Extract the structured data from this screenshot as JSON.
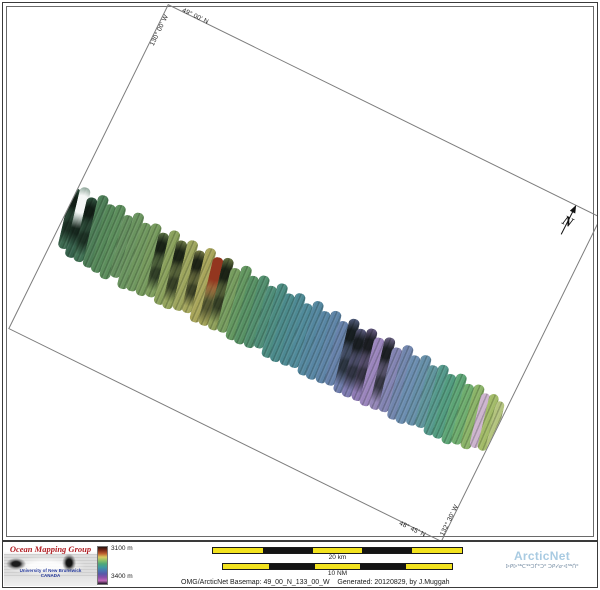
{
  "map": {
    "graticule_labels": {
      "top_lat": "49° 00' N",
      "top_lon": "130° 00' W",
      "bottom_lat": "48° 45' N",
      "bottom_lon": "132° 30' W"
    },
    "north_arrow_label": "N",
    "swath": {
      "strips": [
        [
          0,
          204,
          62,
          11,
          "#3c6950",
          1
        ],
        [
          9,
          199,
          72,
          11,
          "#35614b",
          3
        ],
        [
          19,
          205,
          66,
          11,
          "#417255",
          1
        ],
        [
          29,
          198,
          74,
          11,
          "#4d7e57",
          0
        ],
        [
          39,
          203,
          70,
          11,
          "#558859",
          0
        ],
        [
          49,
          199,
          76,
          11,
          "#5c8e5c",
          0
        ],
        [
          59,
          205,
          64,
          11,
          "#648f5e",
          0
        ],
        [
          69,
          198,
          78,
          11,
          "#6a945f",
          0
        ],
        [
          79,
          204,
          70,
          11,
          "#6f975e",
          0
        ],
        [
          89,
          200,
          74,
          11,
          "#769a5d",
          0
        ],
        [
          99,
          205,
          66,
          11,
          "#7e9d5c",
          1
        ],
        [
          109,
          198,
          76,
          11,
          "#8aa15c",
          0
        ],
        [
          119,
          204,
          70,
          11,
          "#94a45c",
          1
        ],
        [
          129,
          199,
          72,
          11,
          "#9da55d",
          0
        ],
        [
          139,
          205,
          64,
          11,
          "#a4a65c",
          1
        ],
        [
          149,
          198,
          76,
          11,
          "#a8a55a",
          0
        ],
        [
          159,
          203,
          70,
          11,
          "#a2a258",
          2
        ],
        [
          169,
          199,
          74,
          11,
          "#8fa05a",
          1
        ],
        [
          179,
          205,
          66,
          11,
          "#769c5e",
          0
        ],
        [
          189,
          198,
          76,
          11,
          "#639760",
          0
        ],
        [
          199,
          204,
          70,
          11,
          "#579164",
          0
        ],
        [
          209,
          199,
          74,
          11,
          "#528f6e",
          0
        ],
        [
          219,
          205,
          64,
          11,
          "#4e8d78",
          0
        ],
        [
          229,
          198,
          76,
          11,
          "#4c8c82",
          0
        ],
        [
          239,
          204,
          70,
          11,
          "#4b8a8b",
          0
        ],
        [
          249,
          199,
          74,
          11,
          "#4d8993",
          0
        ],
        [
          259,
          205,
          66,
          11,
          "#508a9a",
          0
        ],
        [
          269,
          198,
          76,
          11,
          "#54879f",
          0
        ],
        [
          279,
          204,
          70,
          11,
          "#5886a4",
          0
        ],
        [
          289,
          199,
          74,
          11,
          "#5e84a7",
          0
        ],
        [
          299,
          205,
          66,
          11,
          "#6681aa",
          0
        ],
        [
          309,
          198,
          76,
          11,
          "#6f7dac",
          1
        ],
        [
          319,
          204,
          70,
          11,
          "#7d7ab0",
          1
        ],
        [
          329,
          199,
          74,
          11,
          "#8d7ab4",
          1
        ],
        [
          339,
          204,
          70,
          11,
          "#9a84bc",
          0
        ],
        [
          349,
          199,
          74,
          11,
          "#9486b8",
          1
        ],
        [
          359,
          205,
          66,
          11,
          "#8283b2",
          0
        ],
        [
          369,
          198,
          76,
          11,
          "#7286ae",
          0
        ],
        [
          379,
          204,
          70,
          11,
          "#6b8db0",
          0
        ],
        [
          389,
          199,
          72,
          11,
          "#668fa9",
          0
        ],
        [
          399,
          205,
          64,
          11,
          "#5f949c",
          0
        ],
        [
          409,
          200,
          72,
          11,
          "#55998c",
          0
        ],
        [
          419,
          205,
          66,
          11,
          "#529c80",
          0
        ],
        [
          429,
          200,
          72,
          11,
          "#5da576",
          0
        ],
        [
          439,
          206,
          62,
          11,
          "#6ead6e",
          0
        ],
        [
          449,
          202,
          66,
          11,
          "#8bb468",
          0
        ],
        [
          458,
          207,
          56,
          10,
          "#cdb4cf",
          0
        ],
        [
          466,
          204,
          58,
          10,
          "#a2bb68",
          0
        ],
        [
          474,
          208,
          48,
          9,
          "#b4c47e",
          0
        ]
      ]
    }
  },
  "footer": {
    "omg": {
      "title": "Ocean Mapping Group",
      "institution": "University of New Brunswick",
      "country": "CANADA",
      "title_color": "#b01e23",
      "institution_color": "#23389b"
    },
    "colorbar": {
      "top_label": "3100 m",
      "bottom_label": "3400 m",
      "stops": [
        "#2a1510",
        "#7a2a18",
        "#c06030",
        "#d8c860",
        "#90c068",
        "#50a878",
        "#409aa0",
        "#4878b0",
        "#5858a8",
        "#8850a8",
        "#c068b8",
        "#201828"
      ]
    },
    "scalebars": [
      {
        "label": "20 km",
        "segments": [
          "#f2e21e",
          "#141414",
          "#f2e21e",
          "#141414",
          "#f2e21e"
        ]
      },
      {
        "label": "10 NM",
        "segments": [
          "#f2e21e",
          "#141414",
          "#f2e21e",
          "#141414",
          "#f2e21e"
        ]
      }
    ],
    "caption": "OMG/ArcticNet Basemap: 49_00_N_133_00_W    Generated: 20120829, by J.Muggah",
    "arcticnet": {
      "name": "ArcticNet",
      "syllabics": "ᐅᑭᐅᖅᑕᖅᑐᒦᑦᑐᑦ ᑐᑭᓯᓂᐊᖅᑏᑦ",
      "name_color": "#a9cbe2"
    }
  }
}
